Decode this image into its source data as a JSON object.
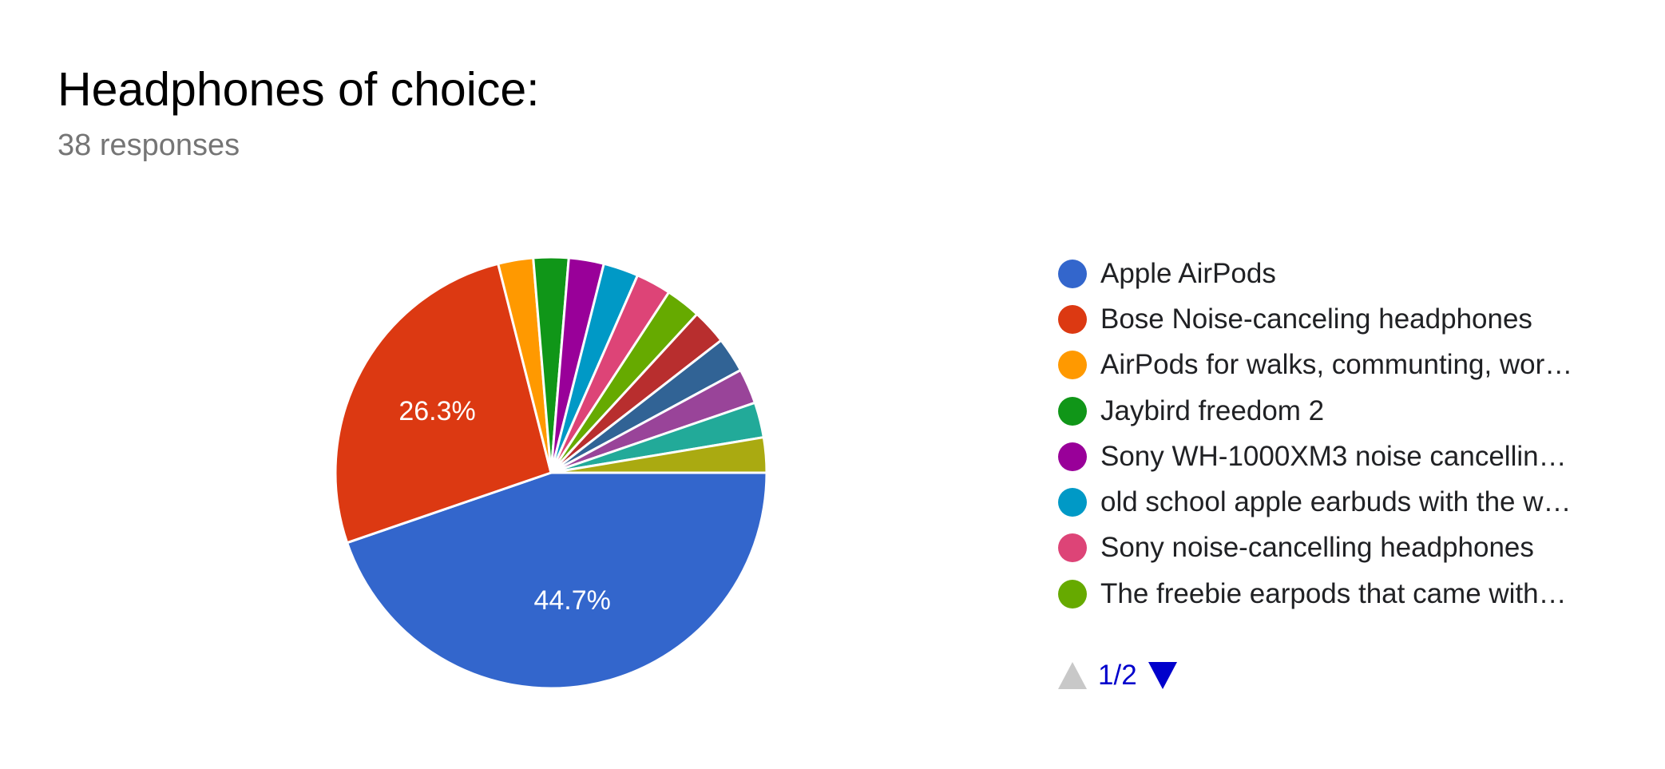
{
  "header": {
    "title": "Headphones of choice:",
    "subtitle": "38 responses"
  },
  "chart_data": {
    "type": "pie",
    "title": "Headphones of choice:",
    "subtitle": "38 responses",
    "total_responses": 38,
    "start_angle_deg": 0,
    "direction": "clockwise-from-3-oclock",
    "slices": [
      {
        "label": "Apple AirPods",
        "count": 17,
        "percent": 44.7,
        "color": "#3366cc",
        "show_label": true,
        "label_text": "44.7%"
      },
      {
        "label": "Bose Noise-canceling headphones",
        "count": 10,
        "percent": 26.3,
        "color": "#dc3912",
        "show_label": true,
        "label_text": "26.3%"
      },
      {
        "label": "AirPods for walks, communting, wor…",
        "count": 1,
        "percent": 2.6,
        "color": "#ff9900",
        "show_label": false
      },
      {
        "label": "Jaybird freedom 2",
        "count": 1,
        "percent": 2.6,
        "color": "#109618",
        "show_label": false
      },
      {
        "label": "Sony WH-1000XM3 noise cancellin…",
        "count": 1,
        "percent": 2.6,
        "color": "#990099",
        "show_label": false
      },
      {
        "label": "old school apple earbuds with the w…",
        "count": 1,
        "percent": 2.6,
        "color": "#0099c6",
        "show_label": false
      },
      {
        "label": "Sony noise-cancelling headphones",
        "count": 1,
        "percent": 2.6,
        "color": "#dd4477",
        "show_label": false
      },
      {
        "label": "The freebie earpods that came with…",
        "count": 1,
        "percent": 2.6,
        "color": "#66aa00",
        "show_label": false
      },
      {
        "label": "",
        "count": 1,
        "percent": 2.6,
        "color": "#b82e2e",
        "show_label": false
      },
      {
        "label": "",
        "count": 1,
        "percent": 2.6,
        "color": "#316395",
        "show_label": false
      },
      {
        "label": "",
        "count": 1,
        "percent": 2.6,
        "color": "#994499",
        "show_label": false
      },
      {
        "label": "",
        "count": 1,
        "percent": 2.6,
        "color": "#22aa99",
        "show_label": false
      },
      {
        "label": "",
        "count": 1,
        "percent": 2.6,
        "color": "#aaaa11",
        "show_label": false
      }
    ],
    "legend_position": "right",
    "legend_page": "1/2"
  },
  "legend": {
    "items": [
      {
        "label": "Apple AirPods",
        "color": "#3366cc"
      },
      {
        "label": "Bose Noise-canceling headphones",
        "color": "#dc3912"
      },
      {
        "label": "AirPods for walks, communting, wor…",
        "color": "#ff9900"
      },
      {
        "label": "Jaybird freedom 2",
        "color": "#109618"
      },
      {
        "label": "Sony WH-1000XM3 noise cancellin…",
        "color": "#990099"
      },
      {
        "label": "old school apple earbuds with the w…",
        "color": "#0099c6"
      },
      {
        "label": "Sony noise-cancelling headphones",
        "color": "#dd4477"
      },
      {
        "label": "The freebie earpods that came with…",
        "color": "#66aa00"
      }
    ],
    "pager": {
      "text": "1/2",
      "up_icon": "triangle-up-icon",
      "down_icon": "triangle-down-icon",
      "up_color": "#c8c8c8",
      "down_color": "#0000cc"
    }
  }
}
